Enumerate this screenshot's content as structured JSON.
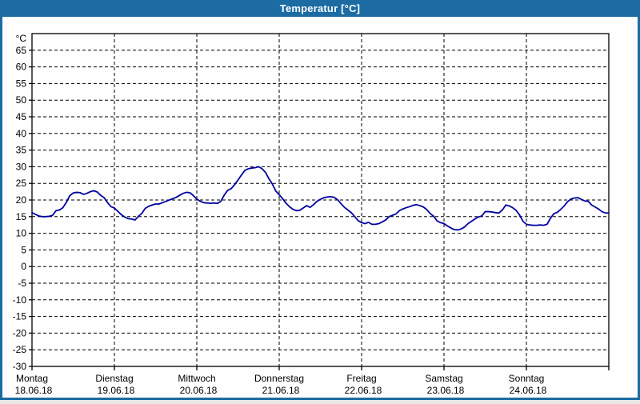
{
  "window": {
    "title": "Temperatur [°C]",
    "title_bar_color": "#1c6ba3",
    "background_color": "#fdfefd"
  },
  "chart_data": {
    "type": "line",
    "title": "Temperatur [°C]",
    "ylabel": "°C",
    "xlabel": "",
    "ylim": [
      -30,
      70
    ],
    "yticks": [
      -30,
      -25,
      -20,
      -15,
      -10,
      -5,
      0,
      5,
      10,
      15,
      20,
      25,
      30,
      35,
      40,
      45,
      50,
      55,
      60,
      65
    ],
    "grid": "dashed",
    "legend_position": "none",
    "line_color": "#0000a0",
    "axis_color": "#000000",
    "days": [
      {
        "name": "Montag",
        "date": "18.06.18"
      },
      {
        "name": "Dienstag",
        "date": "19.06.18"
      },
      {
        "name": "Mittwoch",
        "date": "20.06.18"
      },
      {
        "name": "Donnerstag",
        "date": "21.06.18"
      },
      {
        "name": "Freitag",
        "date": "22.06.18"
      },
      {
        "name": "Samstag",
        "date": "23.06.18"
      },
      {
        "name": "Sonntag",
        "date": "24.06.18"
      }
    ],
    "series": [
      {
        "name": "Temperatur",
        "unit": "°C",
        "sampling": "hourly over 7 days",
        "values": [
          16.2,
          15.7,
          15.2,
          15.0,
          15.0,
          15.1,
          15.4,
          16.8,
          17.0,
          17.7,
          19.3,
          21.3,
          22.1,
          22.3,
          22.2,
          21.7,
          22.0,
          22.5,
          22.8,
          22.4,
          21.4,
          20.7,
          19.2,
          18.0,
          17.6,
          16.6,
          15.6,
          14.9,
          14.4,
          14.3,
          14.0,
          15.1,
          16.0,
          17.5,
          18.1,
          18.5,
          18.8,
          18.8,
          19.2,
          19.6,
          20.0,
          20.4,
          20.8,
          21.4,
          22.0,
          22.3,
          22.2,
          21.3,
          20.3,
          19.6,
          19.2,
          19.1,
          19.0,
          19.1,
          19.0,
          19.6,
          21.5,
          22.9,
          23.4,
          24.6,
          26.0,
          27.5,
          28.9,
          29.4,
          29.6,
          29.7,
          30.0,
          29.4,
          28.3,
          26.4,
          24.8,
          22.7,
          21.6,
          20.4,
          19.0,
          18.0,
          17.2,
          16.8,
          16.9,
          17.6,
          18.3,
          17.8,
          18.6,
          19.6,
          20.2,
          20.7,
          20.9,
          21.0,
          20.8,
          20.1,
          18.9,
          17.8,
          17.0,
          16.2,
          15.0,
          13.8,
          13.2,
          12.9,
          13.3,
          12.7,
          12.7,
          12.9,
          13.4,
          14.0,
          15.0,
          15.4,
          15.8,
          16.8,
          17.3,
          17.7,
          18.0,
          18.4,
          18.6,
          18.3,
          17.9,
          17.1,
          15.9,
          15.1,
          13.7,
          13.2,
          12.9,
          12.2,
          11.6,
          11.1,
          11.0,
          11.3,
          11.9,
          12.9,
          13.6,
          14.3,
          14.9,
          15.2,
          16.5,
          16.5,
          16.4,
          16.2,
          16.1,
          17.0,
          18.5,
          18.2,
          17.7,
          16.9,
          15.5,
          13.6,
          12.7,
          12.5,
          12.4,
          12.4,
          12.5,
          12.4,
          12.7,
          14.5,
          15.9,
          16.3,
          17.2,
          18.2,
          19.5,
          20.3,
          20.6,
          20.7,
          20.2,
          19.7,
          19.6,
          18.5,
          17.9,
          17.3,
          16.5,
          16.1,
          16.1
        ]
      }
    ]
  }
}
